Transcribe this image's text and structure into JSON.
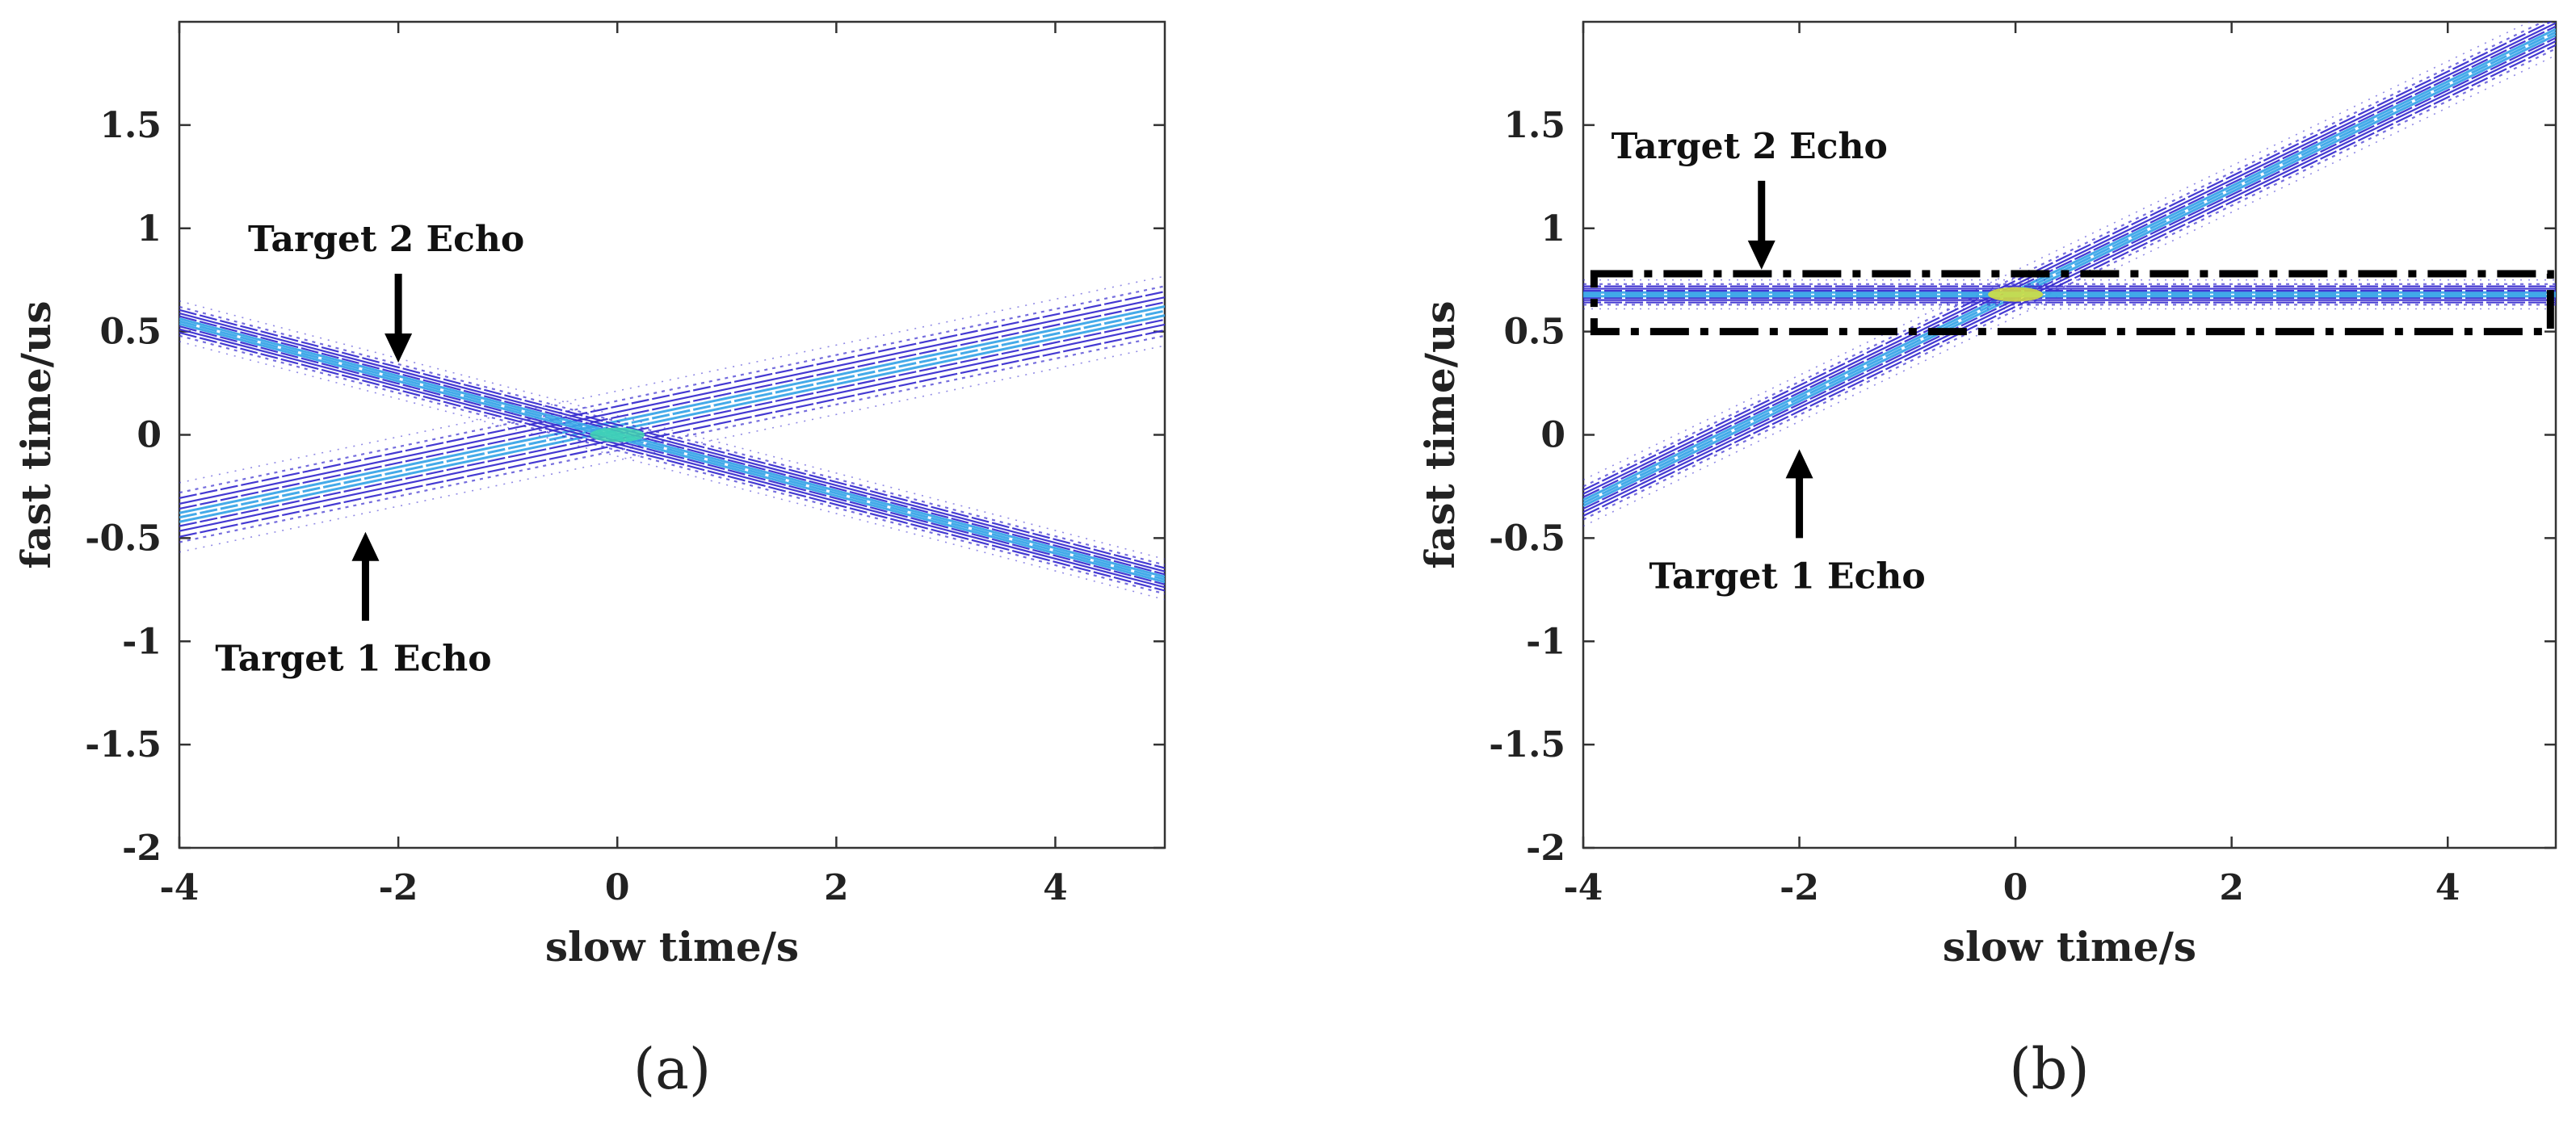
{
  "chart_data": [
    {
      "type": "contour",
      "panel_label": "(a)",
      "xlabel": "slow time/s",
      "ylabel": "fast time/us",
      "xlim": [
        -4,
        5
      ],
      "ylim": [
        -2,
        2
      ],
      "xticks": [
        -4,
        -2,
        0,
        2,
        4
      ],
      "yticks": [
        1.5,
        1,
        0.5,
        0,
        -0.5,
        -1,
        -1.5,
        -2
      ],
      "xtick_labels": [
        "-4",
        "-2",
        "0",
        "2",
        "4"
      ],
      "ytick_labels": [
        "1.5",
        "1",
        "0.5",
        "0",
        "-0.5",
        "-1",
        "-1.5",
        "-2"
      ],
      "series": [
        {
          "name": "Target 1 Echo",
          "line": {
            "x": [
              -4,
              5
            ],
            "y": [
              -0.4,
              0.6
            ]
          },
          "spread": 0.12
        },
        {
          "name": "Target 2 Echo",
          "line": {
            "x": [
              -4,
              5
            ],
            "y": [
              0.55,
              -0.7
            ]
          },
          "spread": 0.07
        }
      ],
      "peak": {
        "x": 0,
        "y": 0
      },
      "annotations": [
        {
          "text": "Target 2 Echo",
          "arrow_tip": {
            "x": -2.0,
            "y": 0.35
          },
          "arrow_dir": "down"
        },
        {
          "text": "Target 1 Echo",
          "arrow_tip": {
            "x": -2.3,
            "y": -0.47
          },
          "arrow_dir": "up"
        }
      ],
      "colors": {
        "contour_outer": "#3a2fd0",
        "contour_inner": "#3aa6e8",
        "contour_peak": "#3fd6b0"
      }
    },
    {
      "type": "contour",
      "panel_label": "(b)",
      "xlabel": "slow time/s",
      "ylabel": "fast time/us",
      "xlim": [
        -4,
        5
      ],
      "ylim": [
        -2,
        2
      ],
      "xticks": [
        -4,
        -2,
        0,
        2,
        4
      ],
      "yticks": [
        1.5,
        1,
        0.5,
        0,
        -0.5,
        -1,
        -1.5,
        -2
      ],
      "xtick_labels": [
        "-4",
        "-2",
        "0",
        "2",
        "4"
      ],
      "ytick_labels": [
        "1.5",
        "1",
        "0.5",
        "0",
        "-0.5",
        "-1",
        "-1.5",
        "-2"
      ],
      "series": [
        {
          "name": "Target 1 Echo",
          "line": {
            "x": [
              -4,
              5
            ],
            "y": [
              -0.33,
              1.95
            ]
          },
          "spread": 0.08
        },
        {
          "name": "Target 2 Echo",
          "line": {
            "x": [
              -4,
              5
            ],
            "y": [
              0.68,
              0.68
            ]
          },
          "spread": 0.05
        }
      ],
      "peak": {
        "x": 0,
        "y": 0.68
      },
      "highlight_box": {
        "x": [
          -3.9,
          4.95
        ],
        "y": [
          0.5,
          0.78
        ]
      },
      "annotations": [
        {
          "text": "Target 2 Echo",
          "arrow_tip": {
            "x": -2.35,
            "y": 0.8
          },
          "arrow_dir": "down"
        },
        {
          "text": "Target 1 Echo",
          "arrow_tip": {
            "x": -2.0,
            "y": -0.07
          },
          "arrow_dir": "up"
        }
      ],
      "colors": {
        "contour_outer": "#3a2fd0",
        "contour_inner": "#3aa6e8",
        "contour_peak": "#d9e43a"
      }
    }
  ]
}
